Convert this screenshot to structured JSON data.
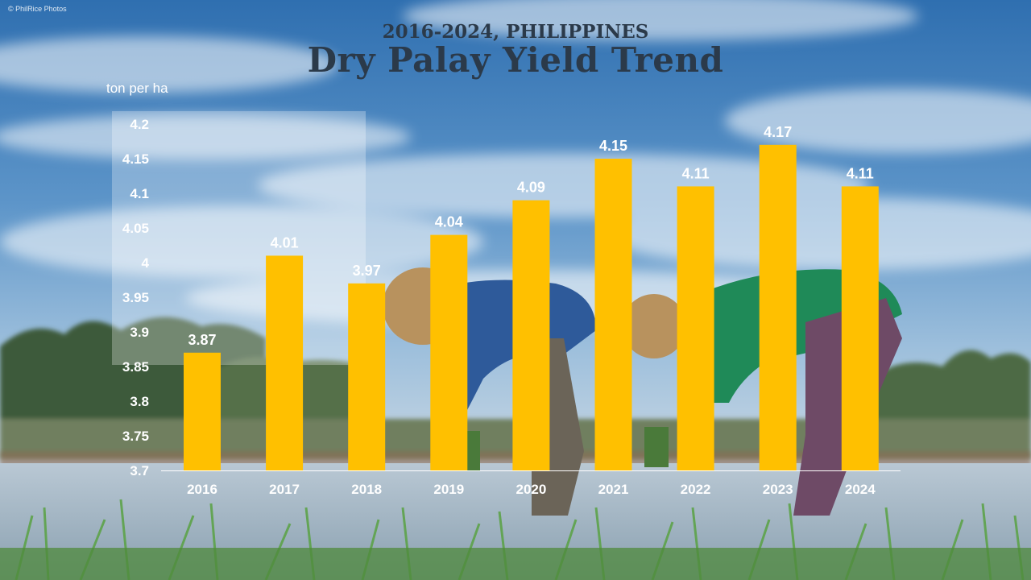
{
  "credit": "© PhilRice Photos",
  "colors": {
    "bar": "#FFC000",
    "text": "#ffffff",
    "title": "#2b3a4a"
  },
  "chart_data": {
    "type": "bar",
    "subtitle": "2016-2024, PHILIPPINES",
    "title": "Dry Palay Yield Trend",
    "ylabel": "ton per ha",
    "xlabel": "",
    "categories": [
      "2016",
      "2017",
      "2018",
      "2019",
      "2020",
      "2021",
      "2022",
      "2023",
      "2024"
    ],
    "values": [
      3.87,
      4.01,
      3.97,
      4.04,
      4.09,
      4.15,
      4.11,
      4.17,
      4.11
    ],
    "ylim": [
      3.7,
      4.2
    ],
    "yticks": [
      "3.7",
      "3.75",
      "3.8",
      "3.85",
      "3.9",
      "3.95",
      "4",
      "4.05",
      "4.1",
      "4.15",
      "4.2"
    ],
    "data_labels": true,
    "grid": false,
    "legend": "none"
  }
}
